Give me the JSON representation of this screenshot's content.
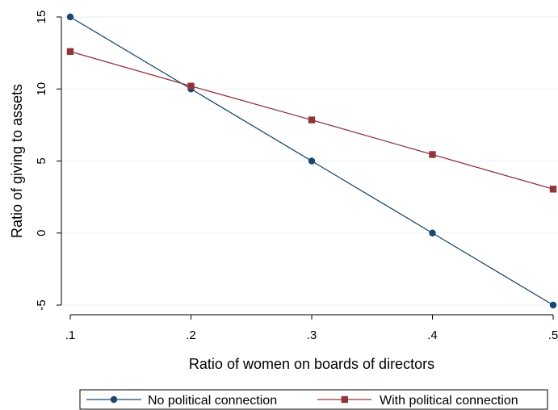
{
  "chart_data": {
    "type": "line",
    "title": "",
    "xlabel": "Ratio of women on boards of directors",
    "ylabel": "Ratio of giving to assets",
    "x": [
      0.1,
      0.2,
      0.3,
      0.4,
      0.5
    ],
    "x_tick_labels": [
      ".1",
      ".2",
      ".3",
      ".4",
      ".5"
    ],
    "y_ticks": [
      -5,
      0,
      5,
      10,
      15
    ],
    "y_tick_labels": [
      "-5",
      "0",
      "5",
      "10",
      "15"
    ],
    "xlim": [
      0.1,
      0.5
    ],
    "ylim": [
      -5,
      15
    ],
    "grid": "horizontal",
    "legend_position": "bottom",
    "series": [
      {
        "name": "No political connection",
        "values": [
          15,
          10,
          5,
          0,
          -5
        ],
        "color": "#1a476f",
        "marker": "circle"
      },
      {
        "name": "With political connection",
        "values": [
          12.6,
          10.2,
          7.85,
          5.45,
          3.05
        ],
        "color": "#90353b",
        "marker": "square"
      }
    ]
  }
}
